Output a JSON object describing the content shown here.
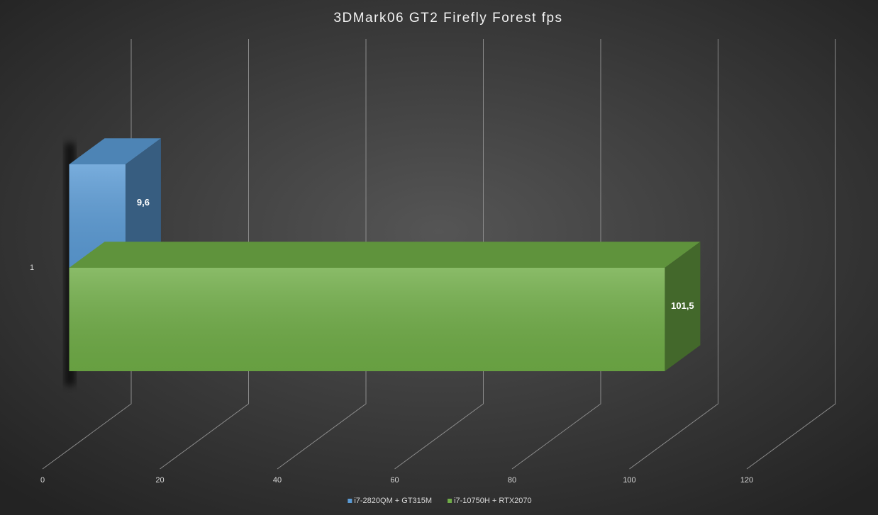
{
  "chart_data": {
    "type": "bar3d",
    "orientation": "horizontal",
    "title": "3DMark06 GT2 Firefly Forest fps",
    "categories": [
      "1"
    ],
    "series": [
      {
        "name": "i7-2820QM + GT315M",
        "color": "#5b9bd5",
        "values": [
          9.6
        ],
        "value_labels": [
          "9,6"
        ]
      },
      {
        "name": "i7-10750H + RTX2070",
        "color": "#70ad47",
        "values": [
          101.5
        ],
        "value_labels": [
          "101,5"
        ]
      }
    ],
    "xlim": [
      0,
      120
    ],
    "xticks": [
      0,
      20,
      40,
      60,
      80,
      100,
      120
    ],
    "grid": true,
    "legend": "bottom"
  }
}
